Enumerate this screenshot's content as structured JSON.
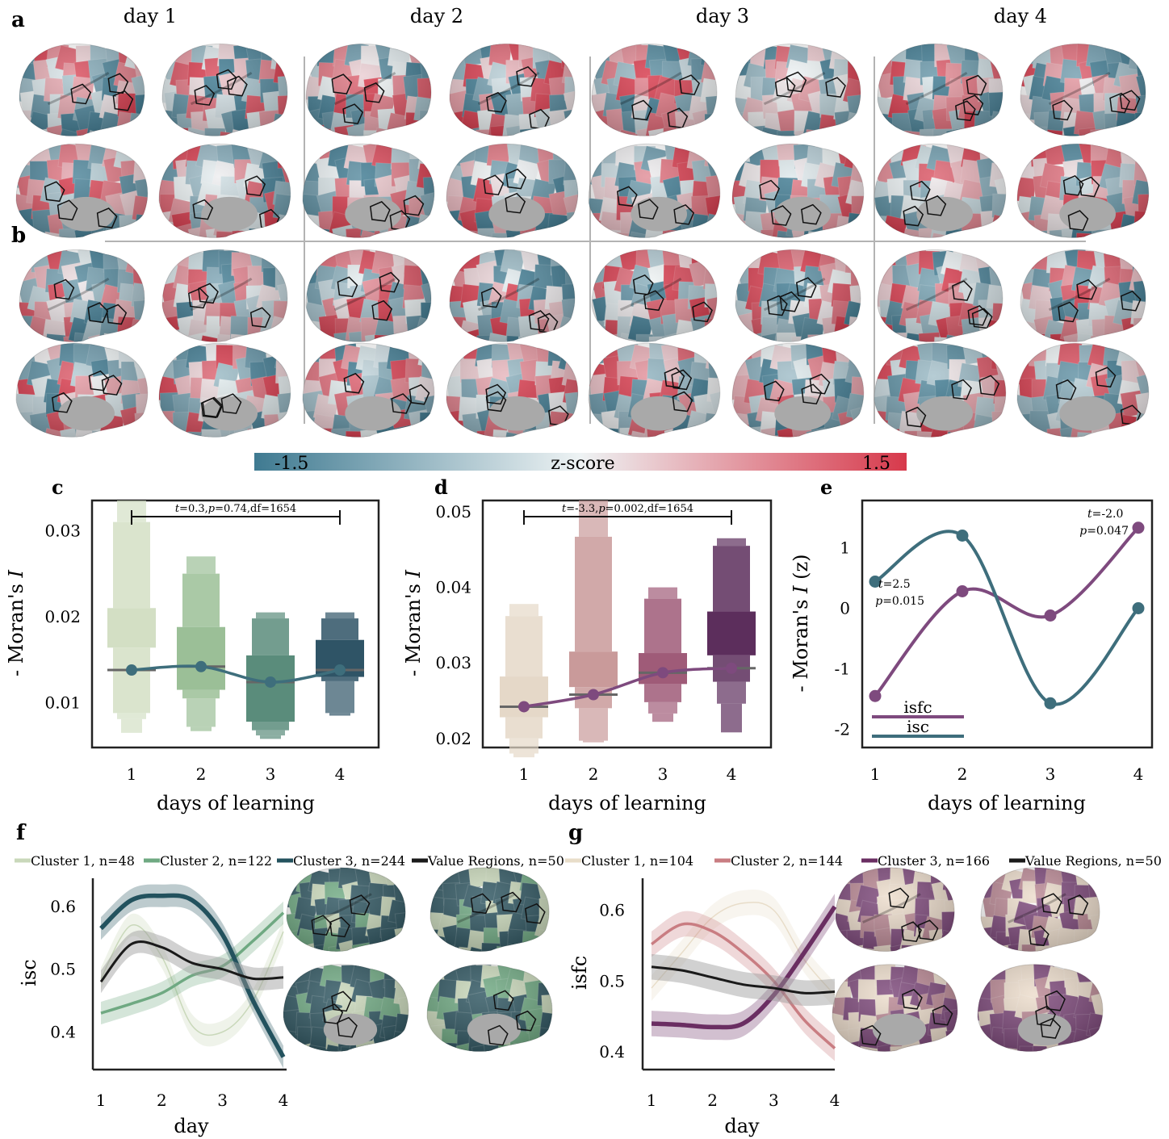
{
  "panel_letters": {
    "a": "a",
    "b": "b",
    "c": "c",
    "d": "d",
    "e": "e",
    "f": "f",
    "g": "g"
  },
  "day_titles": [
    "day 1",
    "day 2",
    "day 3",
    "day 4"
  ],
  "colorbar": {
    "min_label": "-1.5",
    "center_label": "z-score",
    "max_label": "1.5",
    "low_color": "#3f7a91",
    "mid_color": "#eef3f4",
    "high_color": "#d7394b"
  },
  "colors": {
    "c_boxes": [
      "#d3dfc4",
      "#9bbf97",
      "#5a8c7b",
      "#2f5466"
    ],
    "d_boxes": [
      "#e5d8c8",
      "#c99a9a",
      "#9f5b78",
      "#5c2e5c"
    ],
    "isc_line": "#3e6e7c",
    "isfc_line": "#7e4a7e",
    "f_lines": [
      "#c9d8ba",
      "#6fa982",
      "#23525e",
      "#1a1a1a"
    ],
    "g_lines": [
      "#e8ddc9",
      "#c97d82",
      "#6a2e62",
      "#1a1a1a"
    ]
  },
  "chart_data": [
    {
      "panel": "c",
      "type": "box",
      "xlabel": "days of learning",
      "ylabel_prefix": "- Moran's ",
      "ylabel_italic": "I",
      "categories": [
        "1",
        "2",
        "3",
        "4"
      ],
      "yticks": [
        "0.01",
        "0.02",
        "0.03"
      ],
      "ylim": [
        0.0048,
        0.0335
      ],
      "medians": [
        0.0138,
        0.0142,
        0.0124,
        0.0138
      ],
      "letter_values": [
        [
          0.0335,
          0.031,
          0.021,
          0.0164,
          0.0088,
          0.0081,
          0.0065
        ],
        [
          0.027,
          0.025,
          0.0188,
          0.0115,
          0.0105,
          0.0072,
          0.0067
        ],
        [
          0.0205,
          0.0198,
          0.0155,
          0.0078,
          0.0068,
          0.0062,
          0.0058
        ],
        [
          0.0205,
          0.0198,
          0.0173,
          0.013,
          0.0125,
          0.0088,
          0.0085
        ]
      ],
      "annotation": {
        "t": "0.3",
        "p": "0.74",
        "df": "1654"
      }
    },
    {
      "panel": "d",
      "type": "box",
      "xlabel": "days of learning",
      "ylabel_prefix": "- Moran's ",
      "ylabel_italic": "I",
      "categories": [
        "1",
        "2",
        "3",
        "4"
      ],
      "yticks": [
        "0.02",
        "0.03",
        "0.04",
        "0.05"
      ],
      "ylim": [
        0.0188,
        0.0515
      ],
      "medians": [
        0.0242,
        0.0258,
        0.0287,
        0.0293
      ],
      "letter_values": [
        [
          0.0378,
          0.0362,
          0.0282,
          0.0228,
          0.02,
          0.018,
          0.0175
        ],
        [
          0.0515,
          0.0467,
          0.0315,
          0.0268,
          0.024,
          0.0197,
          0.0195
        ],
        [
          0.04,
          0.0385,
          0.0313,
          0.0272,
          0.0248,
          0.0233,
          0.0222
        ],
        [
          0.0465,
          0.0455,
          0.0368,
          0.031,
          0.0275,
          0.0246,
          0.0208
        ]
      ],
      "annotation": {
        "t": "-3.3",
        "p": "0.002",
        "df": "1654"
      }
    },
    {
      "panel": "e",
      "type": "line",
      "xlabel": "days of learning",
      "ylabel_prefix": "- Moran's ",
      "ylabel_italic": "I",
      "ylabel_suffix": " (z)",
      "x": [
        1,
        2,
        3,
        4
      ],
      "xticks": [
        "1",
        "2",
        "3",
        "4"
      ],
      "yticks": [
        "-2",
        "-1",
        "0",
        "1"
      ],
      "ylim": [
        -2.3,
        1.78
      ],
      "series": [
        {
          "name": "isfc",
          "values": [
            -1.45,
            0.28,
            -0.12,
            1.33
          ]
        },
        {
          "name": "isc",
          "values": [
            0.44,
            1.2,
            -1.57,
            0.0
          ]
        }
      ],
      "annotations": [
        {
          "t": "2.5",
          "p": "0.015"
        },
        {
          "t": "-2.0",
          "p": "0.047"
        }
      ]
    },
    {
      "panel": "f",
      "type": "line",
      "xlabel": "day",
      "ylabel": "isc",
      "xticks": [
        "1",
        "2",
        "3",
        "4"
      ],
      "yticks": [
        "0.4",
        "0.5",
        "0.6"
      ],
      "ylim": [
        0.34,
        0.645
      ],
      "series": [
        {
          "name": "Cluster 1, n=48",
          "x": [
            1,
            1.5,
            2,
            2.5,
            3,
            3.5,
            4
          ],
          "values": [
            0.485,
            0.57,
            0.52,
            0.41,
            0.4,
            0.45,
            0.56
          ]
        },
        {
          "name": "Cluster 2, n=122",
          "x": [
            1,
            1.5,
            2,
            2.5,
            3,
            3.5,
            4
          ],
          "values": [
            0.43,
            0.445,
            0.462,
            0.49,
            0.505,
            0.545,
            0.59
          ]
        },
        {
          "name": "Cluster 3, n=244",
          "x": [
            1,
            1.5,
            2,
            2.5,
            3,
            3.5,
            4
          ],
          "values": [
            0.565,
            0.61,
            0.617,
            0.61,
            0.555,
            0.45,
            0.36
          ]
        },
        {
          "name": "Value Regions, n=50",
          "x": [
            1,
            1.5,
            2,
            2.5,
            3,
            3.5,
            4
          ],
          "values": [
            0.48,
            0.54,
            0.535,
            0.51,
            0.5,
            0.485,
            0.487
          ]
        }
      ]
    },
    {
      "panel": "g",
      "type": "line",
      "xlabel": "day",
      "ylabel": "isfc",
      "xticks": [
        "1",
        "2",
        "3",
        "4"
      ],
      "yticks": [
        "0.4",
        "0.5",
        "0.6"
      ],
      "ylim": [
        0.375,
        0.645
      ],
      "series": [
        {
          "name": "Cluster 1, n=104",
          "x": [
            1,
            1.5,
            2,
            2.5,
            3,
            3.5,
            4
          ],
          "values": [
            0.49,
            0.54,
            0.59,
            0.61,
            0.6,
            0.53,
            0.48
          ]
        },
        {
          "name": "Cluster 2, n=144",
          "x": [
            1,
            1.5,
            2,
            2.5,
            3,
            3.5,
            4
          ],
          "values": [
            0.552,
            0.58,
            0.57,
            0.54,
            0.5,
            0.445,
            0.405
          ]
        },
        {
          "name": "Cluster 3, n=166",
          "x": [
            1,
            1.5,
            2,
            2.5,
            3,
            3.5,
            4
          ],
          "values": [
            0.44,
            0.438,
            0.435,
            0.44,
            0.48,
            0.54,
            0.605
          ]
        },
        {
          "name": "Value Regions, n=50",
          "x": [
            1,
            1.5,
            2,
            2.5,
            3,
            3.5,
            4
          ],
          "values": [
            0.52,
            0.515,
            0.505,
            0.495,
            0.49,
            0.483,
            0.485
          ]
        }
      ]
    }
  ]
}
